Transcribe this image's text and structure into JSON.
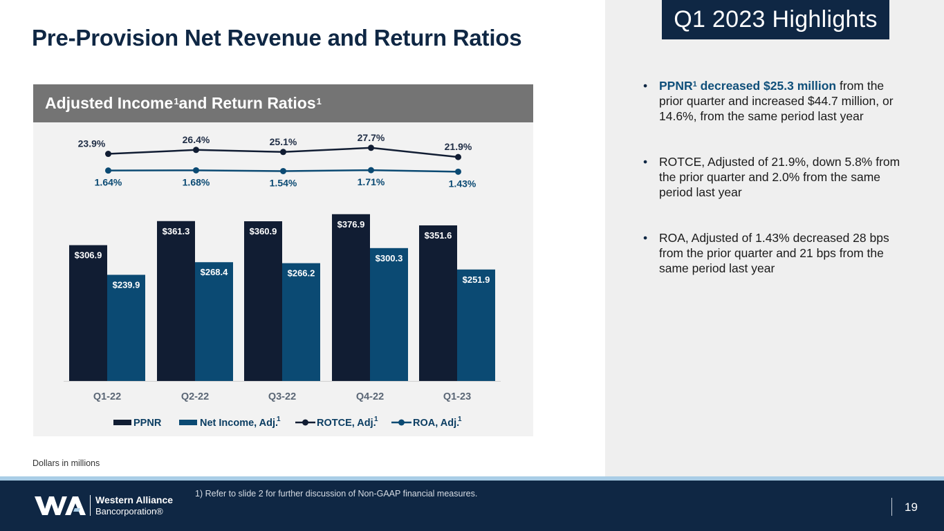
{
  "slide": {
    "title": "Pre-Provision Net Revenue and Return Ratios",
    "highlight_tag": "Q1 2023 Highlights",
    "units_note": "Dollars in millions",
    "footnote": "1)  Refer to slide 2 for further discussion of Non-GAAP financial measures.",
    "page_number": "19"
  },
  "logo": {
    "line1": "Western Alliance",
    "line2": "Bancorporation®",
    "icon": "wa-logo-icon"
  },
  "chart_header": {
    "text": "Adjusted Income",
    "sup1": "1",
    "text2": " and Return Ratios",
    "sup2": "1"
  },
  "bullets": [
    {
      "bold": "PPNR",
      "sup": "1",
      "bold2": " decreased $25.3 million",
      "rest": " from the prior quarter and increased $44.7 million, or 14.6%, from the same period last year"
    },
    {
      "text": "ROTCE, Adjusted of 21.9%, down 5.8% from the prior quarter and 2.0% from the same period last year"
    },
    {
      "text": "ROA, Adjusted of 1.43% decreased 28 bps from the prior quarter and 21 bps from the same period last year"
    }
  ],
  "colors": {
    "navy": "#0f2744",
    "blue": "#0b4a73",
    "tag": "#0f2744"
  },
  "chart_data": {
    "type": "bar",
    "title": "Adjusted Income and Return Ratios",
    "categories": [
      "Q1-22",
      "Q2-22",
      "Q3-22",
      "Q4-22",
      "Q1-23"
    ],
    "series": [
      {
        "name": "PPNR",
        "kind": "bar",
        "color": "#111d33",
        "values": [
          306.9,
          361.3,
          360.9,
          376.9,
          351.6
        ],
        "labels": [
          "$306.9",
          "$361.3",
          "$360.9",
          "$376.9",
          "$351.6"
        ]
      },
      {
        "name": "Net Income, Adj.",
        "sup": "1",
        "kind": "bar",
        "color": "#0b4a73",
        "values": [
          239.9,
          268.4,
          266.2,
          300.3,
          251.9
        ],
        "labels": [
          "$239.9",
          "$268.4",
          "$266.2",
          "$300.3",
          "$251.9"
        ]
      },
      {
        "name": "ROTCE, Adj.",
        "sup": "1",
        "kind": "line",
        "color": "#111d33",
        "values": [
          23.9,
          26.4,
          25.1,
          27.7,
          21.9
        ],
        "labels": [
          "23.9%",
          "26.4%",
          "25.1%",
          "27.7%",
          "21.9%"
        ]
      },
      {
        "name": "ROA, Adj.",
        "sup": "1",
        "kind": "line",
        "color": "#0b4a73",
        "values": [
          1.64,
          1.68,
          1.54,
          1.71,
          1.43
        ],
        "labels": [
          "1.64%",
          "1.68%",
          "1.54%",
          "1.71%",
          "1.43%"
        ]
      }
    ],
    "ylim": [
      0,
      500
    ],
    "legend": "bottom"
  }
}
